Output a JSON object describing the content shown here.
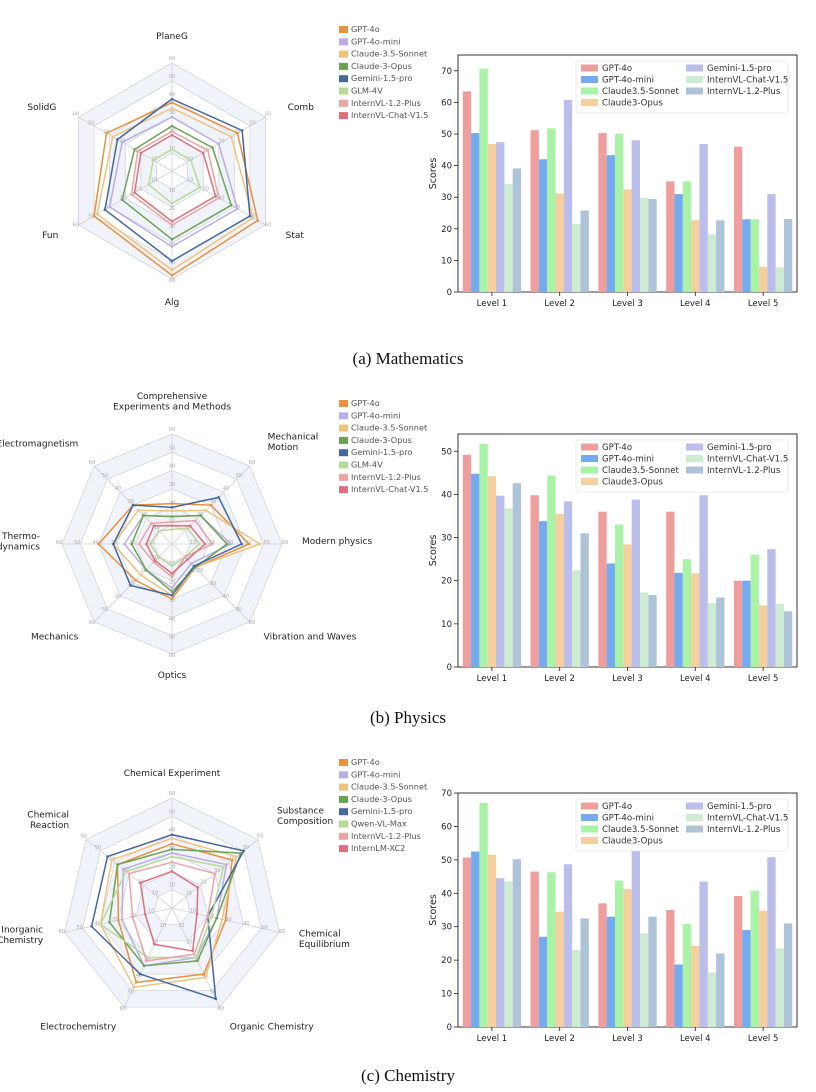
{
  "chart_data": [
    {
      "type": "radar",
      "subject": "Mathematics",
      "axes": [
        "PlaneG",
        "Comb",
        "Stat",
        "Alg",
        "Fun",
        "SolidG"
      ],
      "r_ticks": [
        "10",
        "20",
        "30",
        "40",
        "50",
        "60"
      ],
      "rmax": 60,
      "legend_position": "right",
      "series": [
        {
          "name": "GPT-4o",
          "color": "#e8913f",
          "values": [
            38,
            42,
            55,
            58,
            50,
            42
          ]
        },
        {
          "name": "GPT-4o-mini",
          "color": "#b9aee4",
          "values": [
            30,
            30,
            42,
            42,
            40,
            32
          ]
        },
        {
          "name": "Claude-3.5-Sonnet",
          "color": "#eec37d",
          "values": [
            35,
            38,
            52,
            55,
            48,
            38
          ]
        },
        {
          "name": "Claude-3-Opus",
          "color": "#6aa354",
          "values": [
            25,
            26,
            38,
            38,
            32,
            24
          ]
        },
        {
          "name": "Gemini-1.5-pro",
          "color": "#44679e",
          "values": [
            40,
            45,
            50,
            50,
            43,
            35
          ]
        },
        {
          "name": "GLM-4V",
          "color": "#b7db96",
          "values": [
            12,
            12,
            18,
            18,
            15,
            12
          ]
        },
        {
          "name": "InternVL-1.2-Plus",
          "color": "#eca3a3",
          "values": [
            22,
            23,
            30,
            30,
            26,
            22
          ]
        },
        {
          "name": "InternVL-Chat-V1.5",
          "color": "#de6f7e",
          "values": [
            20,
            20,
            28,
            28,
            24,
            20
          ]
        }
      ]
    },
    {
      "type": "bar",
      "subject": "Mathematics",
      "categories": [
        "Level 1",
        "Level 2",
        "Level 3",
        "Level 4",
        "Level 5"
      ],
      "ylabel": "Scores",
      "ylim": [
        0,
        75
      ],
      "yticks": [
        0,
        10,
        20,
        30,
        40,
        50,
        60,
        70
      ],
      "legend_position": "top-right",
      "series": [
        {
          "name": "GPT-4o",
          "color": "#ef9e9e",
          "values": [
            63.5,
            51.2,
            50.3,
            35.0,
            46.0
          ]
        },
        {
          "name": "GPT-4o-mini",
          "color": "#74aaf0",
          "values": [
            50.3,
            42.0,
            43.3,
            31.0,
            23.0
          ]
        },
        {
          "name": "Claude3.5-Sonnet",
          "color": "#a8f3a5",
          "values": [
            70.7,
            51.8,
            50.0,
            35.0,
            23.0
          ]
        },
        {
          "name": "Claude3-Opus",
          "color": "#f6cf9f",
          "values": [
            46.8,
            31.2,
            32.5,
            22.7,
            7.9
          ]
        },
        {
          "name": "Gemini-1.5-pro",
          "color": "#bbbdeb",
          "values": [
            47.4,
            60.8,
            48.0,
            46.8,
            31.0
          ]
        },
        {
          "name": "InternVL-Chat-V1.5",
          "color": "#cdebd0",
          "values": [
            34.2,
            21.6,
            29.8,
            18.2,
            7.8
          ]
        },
        {
          "name": "InternVL-1.2-Plus",
          "color": "#aec3d8",
          "values": [
            39.1,
            25.8,
            29.4,
            22.7,
            23.1
          ]
        }
      ]
    },
    {
      "type": "radar",
      "subject": "Physics",
      "axes": [
        "Comprehensive\nExperiments and Methods",
        "Mechanical\nMotion",
        "Modern physics",
        "Vibration and Waves",
        "Optics",
        "Mechanics",
        "Thermo-\ndynamics",
        "Electromagnetism"
      ],
      "r_ticks": [
        "10",
        "20",
        "30",
        "40",
        "50",
        "60"
      ],
      "rmax": 60,
      "legend_position": "right",
      "series": [
        {
          "name": "GPT-4o",
          "color": "#e8913f",
          "values": [
            22,
            30,
            42,
            18,
            30,
            28,
            40,
            30
          ]
        },
        {
          "name": "GPT-4o-mini",
          "color": "#b9aee4",
          "values": [
            15,
            22,
            32,
            15,
            24,
            20,
            26,
            22
          ]
        },
        {
          "name": "Claude-3.5-Sonnet",
          "color": "#eec37d",
          "values": [
            18,
            26,
            48,
            18,
            28,
            24,
            32,
            26
          ]
        },
        {
          "name": "Claude-3-Opus",
          "color": "#6aa354",
          "values": [
            15,
            22,
            30,
            18,
            26,
            20,
            22,
            22
          ]
        },
        {
          "name": "Gemini-1.5-pro",
          "color": "#44679e",
          "values": [
            20,
            36,
            38,
            17,
            28,
            32,
            32,
            30
          ]
        },
        {
          "name": "GLM-4V",
          "color": "#b7db96",
          "values": [
            8,
            12,
            15,
            10,
            12,
            10,
            12,
            10
          ]
        },
        {
          "name": "InternVL-1.2-Plus",
          "color": "#eca3a3",
          "values": [
            12,
            18,
            22,
            10,
            18,
            14,
            18,
            16
          ]
        },
        {
          "name": "InternVL-Chat-V1.5",
          "color": "#de6f7e",
          "values": [
            10,
            14,
            18,
            12,
            16,
            13,
            14,
            14
          ]
        }
      ]
    },
    {
      "type": "bar",
      "subject": "Physics",
      "categories": [
        "Level 1",
        "Level 2",
        "Level 3",
        "Level 4",
        "Level 5"
      ],
      "ylabel": "Scores",
      "ylim": [
        0,
        54
      ],
      "yticks": [
        0,
        10,
        20,
        30,
        40,
        50
      ],
      "legend_position": "top-right",
      "series": [
        {
          "name": "GPT-4o",
          "color": "#ef9e9e",
          "values": [
            49.2,
            39.8,
            36.0,
            36.0,
            20.0
          ]
        },
        {
          "name": "GPT-4o-mini",
          "color": "#74aaf0",
          "values": [
            44.8,
            33.8,
            24.0,
            21.8,
            20.0
          ]
        },
        {
          "name": "Claude3.5-Sonnet",
          "color": "#a8f3a5",
          "values": [
            51.7,
            44.4,
            33.0,
            25.0,
            26.0
          ]
        },
        {
          "name": "Claude3-Opus",
          "color": "#f6cf9f",
          "values": [
            44.2,
            35.5,
            28.4,
            21.7,
            14.3
          ]
        },
        {
          "name": "Gemini-1.5-pro",
          "color": "#bbbdeb",
          "values": [
            39.7,
            38.4,
            38.8,
            39.8,
            27.3
          ]
        },
        {
          "name": "InternVL-Chat-V1.5",
          "color": "#cdebd0",
          "values": [
            36.8,
            22.4,
            17.3,
            14.8,
            14.6
          ]
        },
        {
          "name": "InternVL-1.2-Plus",
          "color": "#aec3d8",
          "values": [
            42.6,
            31.0,
            16.7,
            16.1,
            12.9
          ]
        }
      ]
    },
    {
      "type": "radar",
      "subject": "Chemistry",
      "axes": [
        "Chemical Experiment",
        "Substance\nComposition",
        "Chemical\nEquilibrium",
        "Organic Chemistry",
        "Electrochemistry",
        "Inorganic\nChemistry",
        "Chemical\nReaction"
      ],
      "r_ticks": [
        "10",
        "20",
        "30",
        "40",
        "50",
        "60"
      ],
      "rmax": 60,
      "legend_position": "right",
      "series": [
        {
          "name": "GPT-4o",
          "color": "#e8913f",
          "values": [
            35,
            42,
            30,
            40,
            45,
            30,
            38
          ]
        },
        {
          "name": "GPT-4o-mini",
          "color": "#b9aee4",
          "values": [
            30,
            38,
            25,
            30,
            35,
            28,
            34
          ]
        },
        {
          "name": "Claude-3.5-Sonnet",
          "color": "#eec37d",
          "values": [
            38,
            45,
            28,
            42,
            48,
            40,
            42
          ]
        },
        {
          "name": "Claude-3-Opus",
          "color": "#6aa354",
          "values": [
            32,
            48,
            25,
            32,
            35,
            35,
            38
          ]
        },
        {
          "name": "Gemini-1.5-pro",
          "color": "#44679e",
          "values": [
            40,
            50,
            20,
            55,
            40,
            45,
            45
          ]
        },
        {
          "name": "Qwen-VL-Max",
          "color": "#b7db96",
          "values": [
            28,
            36,
            22,
            30,
            30,
            40,
            32
          ]
        },
        {
          "name": "InternVL-1.2-Plus",
          "color": "#eca3a3",
          "values": [
            25,
            30,
            20,
            28,
            32,
            22,
            30
          ]
        },
        {
          "name": "InternLM-XC2",
          "color": "#de6f7e",
          "values": [
            20,
            18,
            14,
            26,
            22,
            15,
            22
          ]
        }
      ]
    },
    {
      "type": "bar",
      "subject": "Chemistry",
      "categories": [
        "Level 1",
        "Level 2",
        "Level 3",
        "Level 4",
        "Level 5"
      ],
      "ylabel": "Scores",
      "ylim": [
        0,
        70
      ],
      "yticks": [
        0,
        10,
        20,
        30,
        40,
        50,
        60,
        70
      ],
      "legend_position": "top-right",
      "series": [
        {
          "name": "GPT-4o",
          "color": "#ef9e9e",
          "values": [
            50.7,
            46.5,
            37.0,
            35.0,
            39.2
          ]
        },
        {
          "name": "GPT-4o-mini",
          "color": "#74aaf0",
          "values": [
            52.5,
            27.0,
            33.0,
            18.7,
            29.0
          ]
        },
        {
          "name": "Claude3.5-Sonnet",
          "color": "#a8f3a5",
          "values": [
            67.0,
            46.3,
            43.8,
            30.8,
            40.8
          ]
        },
        {
          "name": "Claude3-Opus",
          "color": "#f6cf9f",
          "values": [
            51.5,
            34.5,
            41.3,
            24.3,
            34.8
          ]
        },
        {
          "name": "Gemini-1.5-pro",
          "color": "#bbbdeb",
          "values": [
            44.5,
            48.7,
            53.5,
            43.5,
            50.8
          ]
        },
        {
          "name": "InternVL-Chat-V1.5",
          "color": "#cdebd0",
          "values": [
            43.5,
            23.0,
            28.0,
            16.3,
            23.5
          ]
        },
        {
          "name": "InternVL-1.2-Plus",
          "color": "#aec3d8",
          "values": [
            50.2,
            32.5,
            33.0,
            22.0,
            31.0
          ]
        }
      ]
    }
  ],
  "captions": [
    "(a) Mathematics",
    "(b) Physics",
    "(c) Chemistry"
  ]
}
